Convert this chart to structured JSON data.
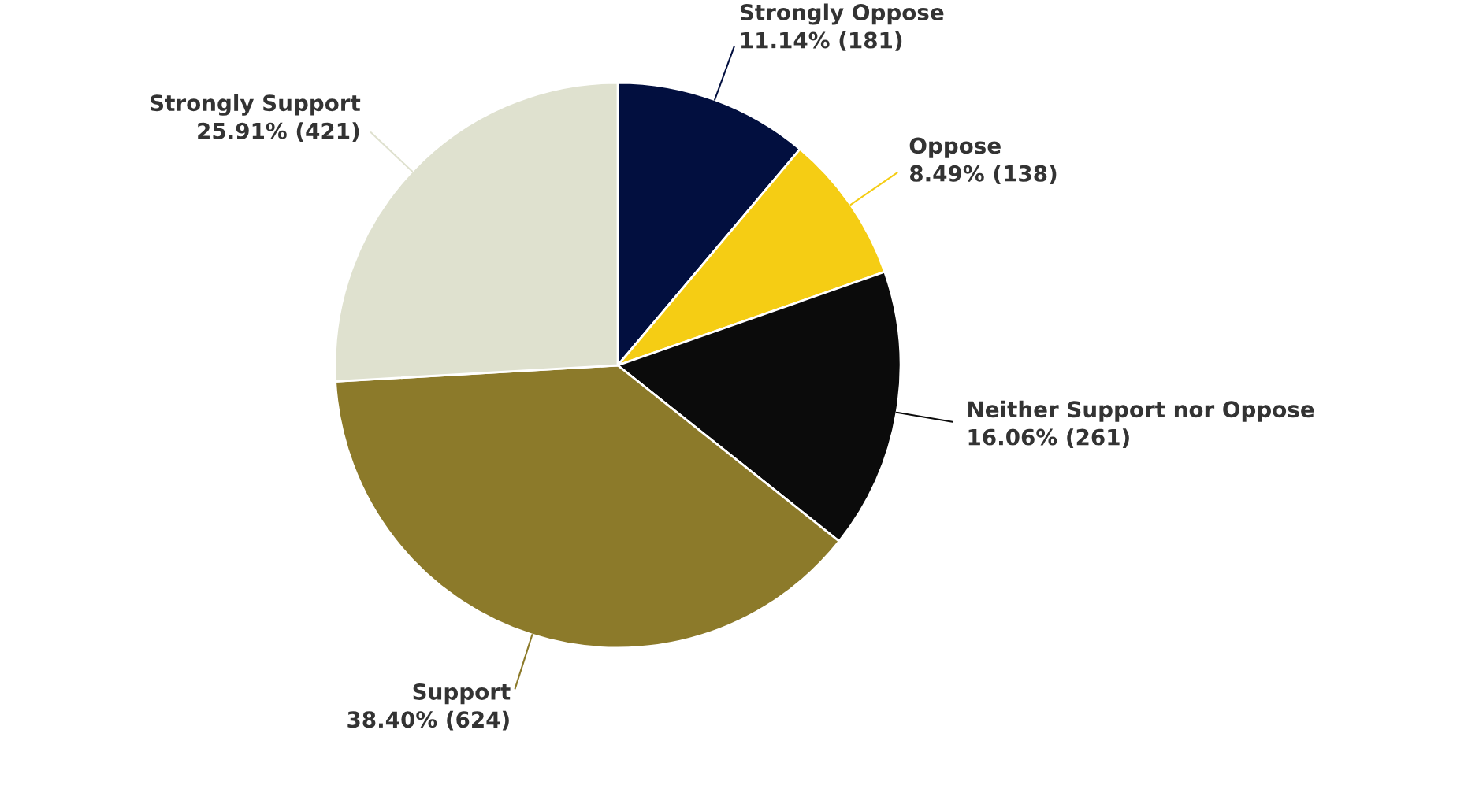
{
  "chart_data": {
    "type": "pie",
    "categories": [
      "Strongly Oppose",
      "Oppose",
      "Neither Support nor Oppose",
      "Support",
      "Strongly Support"
    ],
    "values": [
      181,
      138,
      261,
      624,
      421
    ],
    "value_labels": [
      "11.14% (181)",
      "8.49% (138)",
      "16.06% (261)",
      "38.40% (624)",
      "25.91% (421)"
    ],
    "colors": [
      "#020f3f",
      "#f5cd14",
      "#0b0b0b",
      "#8c7a2a",
      "#dfe1cf"
    ]
  }
}
